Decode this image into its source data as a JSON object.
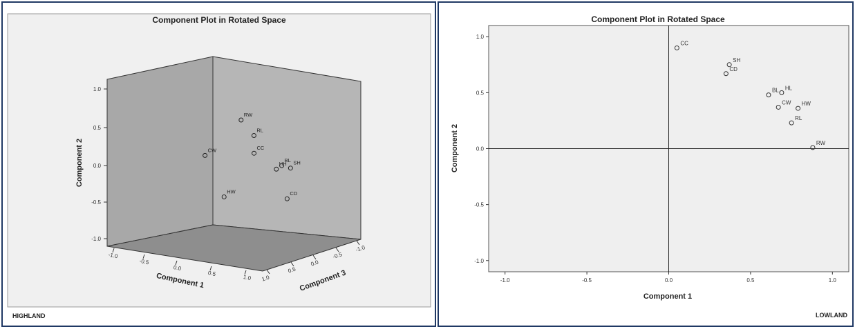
{
  "colors": {
    "frame": "#1f3864",
    "panel_bg": "#f0f0f0",
    "plot_bg": "#efefef",
    "wall_back": "#a8a8a8",
    "wall_side": "#b4b4b4",
    "floor": "#8e8e8e",
    "ink": "#222222"
  },
  "panels": [
    {
      "title": "Component Plot in Rotated Space",
      "caption": "HIGHLAND",
      "chart_data": {
        "type": "scatter",
        "projection": "3d",
        "title": "Component Plot in Rotated Space",
        "xlabel": "Component 1",
        "ylabel": "Component 2",
        "zlabel": "Component 3",
        "xlim": [
          -1.0,
          1.0
        ],
        "ylim": [
          -1.0,
          1.0
        ],
        "zlim": [
          -1.0,
          1.0
        ],
        "x_ticks": [
          "-1.0",
          "-0.5",
          "0.0",
          "0.5",
          "1.0"
        ],
        "y_ticks": [
          "1.0",
          "0.5",
          "0.0",
          "-0.5",
          "-1.0"
        ],
        "z_ticks": [
          "1.0",
          "0.5",
          "0.0",
          "-0.5",
          "-1.0"
        ],
        "points": [
          {
            "label": "RW",
            "x": 0.55,
            "y": 0.92,
            "z": 0.75
          },
          {
            "label": "RL",
            "x": 0.65,
            "y": 0.72,
            "z": 0.6
          },
          {
            "label": "CC",
            "x": 0.62,
            "y": 0.48,
            "z": 0.55
          },
          {
            "label": "CW",
            "x": 0.1,
            "y": 0.4,
            "z": 0.9
          },
          {
            "label": "BL",
            "x": 0.85,
            "y": 0.33,
            "z": 0.25
          },
          {
            "label": "HH",
            "x": 0.8,
            "y": 0.28,
            "z": 0.3
          },
          {
            "label": "SH",
            "x": 0.92,
            "y": 0.3,
            "z": 0.15
          },
          {
            "label": "CD",
            "x": 0.9,
            "y": -0.1,
            "z": 0.2
          },
          {
            "label": "HW",
            "x": 0.2,
            "y": -0.15,
            "z": 0.6
          }
        ]
      }
    },
    {
      "title": "Component Plot in Rotated Space",
      "caption": "LOWLAND",
      "chart_data": {
        "type": "scatter",
        "title": "Component Plot in Rotated Space",
        "xlabel": "Component 1",
        "ylabel": "Component 2",
        "xlim": [
          -1.1,
          1.1
        ],
        "ylim": [
          -1.1,
          1.1
        ],
        "x_ticks": [
          "-1.0",
          "-0.5",
          "0.0",
          "0.5",
          "1.0"
        ],
        "y_ticks": [
          "1.0",
          "0.5",
          "0.0",
          "-0.5",
          "-1.0"
        ],
        "reference_lines": {
          "x": 0,
          "y": 0
        },
        "points": [
          {
            "label": "CC",
            "x": 0.05,
            "y": 0.9
          },
          {
            "label": "SH",
            "x": 0.37,
            "y": 0.75
          },
          {
            "label": "CD",
            "x": 0.35,
            "y": 0.67
          },
          {
            "label": "HL",
            "x": 0.69,
            "y": 0.5
          },
          {
            "label": "BL",
            "x": 0.61,
            "y": 0.48
          },
          {
            "label": "CW",
            "x": 0.67,
            "y": 0.37
          },
          {
            "label": "HW",
            "x": 0.79,
            "y": 0.36
          },
          {
            "label": "RL",
            "x": 0.75,
            "y": 0.23
          },
          {
            "label": "RW",
            "x": 0.88,
            "y": 0.01
          }
        ]
      }
    }
  ]
}
